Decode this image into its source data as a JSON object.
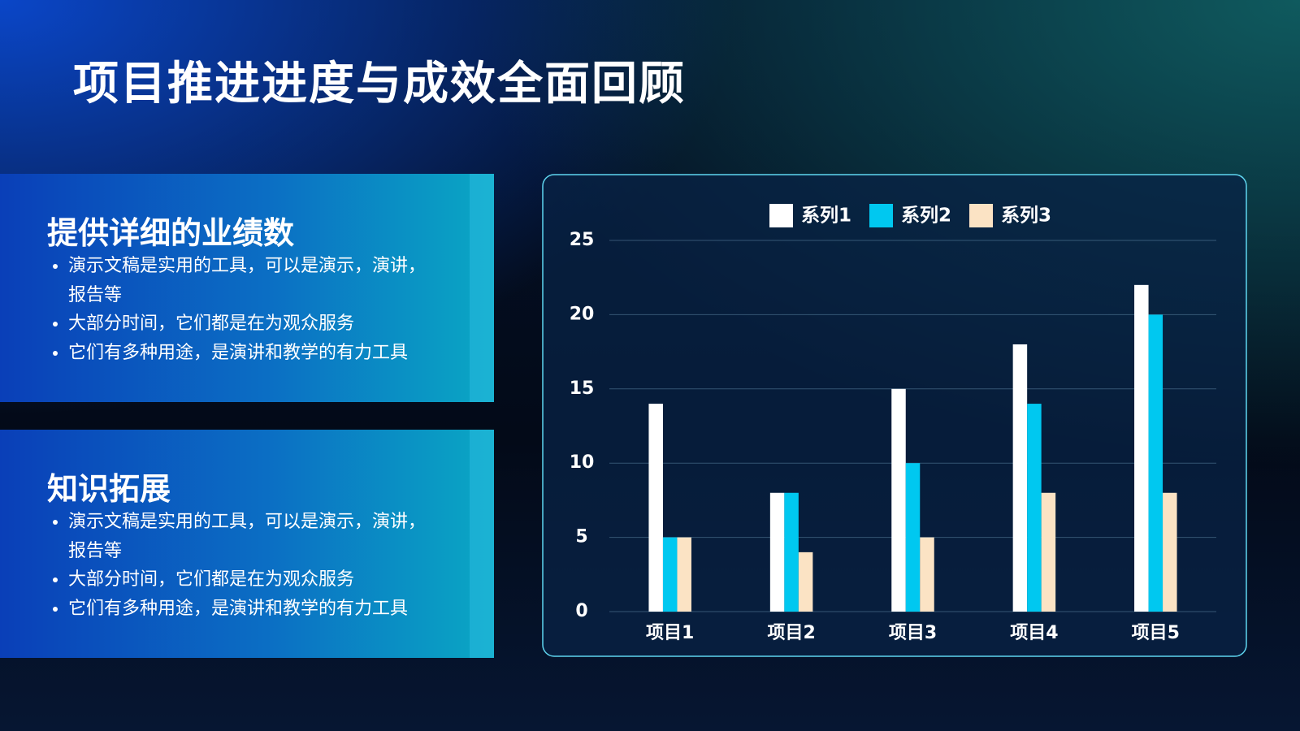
{
  "header": {
    "title": "项目推进进度与成效全面回顾"
  },
  "panels": [
    {
      "heading": "提供详细的业绩数",
      "bullets": [
        "演示文稿是实用的工具，可以是演示，演讲，报告等",
        "大部分时间，它们都是在为观众服务",
        "它们有多种用途，是演讲和教学的有力工具"
      ]
    },
    {
      "heading": "知识拓展",
      "bullets": [
        "演示文稿是实用的工具，可以是演示，演讲，报告等",
        "大部分时间，它们都是在为观众服务",
        "它们有多种用途，是演讲和教学的有力工具"
      ]
    }
  ],
  "chart_data": {
    "type": "bar",
    "categories": [
      "项目1",
      "项目2",
      "项目3",
      "项目4",
      "项目5"
    ],
    "series": [
      {
        "name": "系列1",
        "color": "#ffffff",
        "values": [
          14,
          8,
          15,
          18,
          22
        ]
      },
      {
        "name": "系列2",
        "color": "#00c8f0",
        "values": [
          5,
          8,
          10,
          14,
          20
        ]
      },
      {
        "name": "系列3",
        "color": "#fbe3c4",
        "values": [
          5,
          4,
          5,
          8,
          8
        ]
      }
    ],
    "ylim": [
      0,
      25
    ],
    "yticks": [
      0,
      5,
      10,
      15,
      20,
      25
    ],
    "grid": true,
    "legend": "top"
  }
}
